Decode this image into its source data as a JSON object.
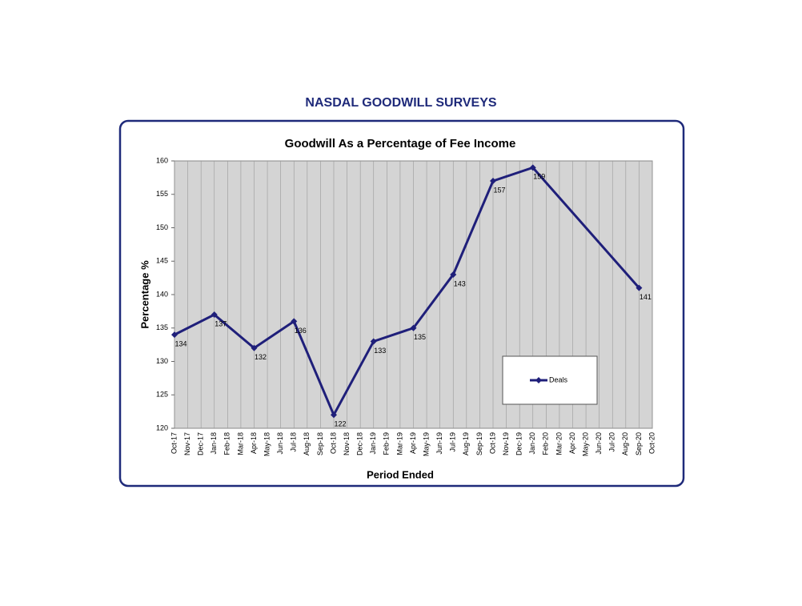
{
  "page_title": "NASDAL GOODWILL SURVEYS",
  "chart_data": {
    "type": "line",
    "title": "Goodwill As a Percentage of Fee Income",
    "x_label": "Period Ended",
    "y_label": "Percentage %",
    "xticks": [
      "Oct-17",
      "Nov-17",
      "Dec-17",
      "Jan-18",
      "Feb-18",
      "Mar-18",
      "Apr-18",
      "May-18",
      "Jun-18",
      "Jul-18",
      "Aug-18",
      "Sep-18",
      "Oct-18",
      "Nov-18",
      "Dec-18",
      "Jan-19",
      "Feb-19",
      "Mar-19",
      "Apr-19",
      "May-19",
      "Jun-19",
      "Jul-19",
      "Aug-19",
      "Sep-19",
      "Oct-19",
      "Nov-19",
      "Dec-19",
      "Jan-20",
      "Feb-20",
      "Mar-20",
      "Apr-20",
      "May-20",
      "Jun-20",
      "Jul-20",
      "Aug-20",
      "Sep-20",
      "Oct-20"
    ],
    "x": [
      "Oct-17",
      "Jan-18",
      "Apr-18",
      "Jul-18",
      "Oct-18",
      "Jan-19",
      "Apr-19",
      "Jul-19",
      "Oct-19",
      "Jan-20",
      "Sep-20"
    ],
    "series": [
      {
        "name": "Deals",
        "color": "#1f1f7a",
        "values": [
          134,
          137,
          132,
          136,
          122,
          133,
          135,
          143,
          157,
          159,
          141
        ]
      }
    ],
    "ylim": [
      120,
      160
    ],
    "yticks": [
      120,
      125,
      130,
      135,
      140,
      145,
      150,
      155,
      160
    ],
    "grid": true
  }
}
